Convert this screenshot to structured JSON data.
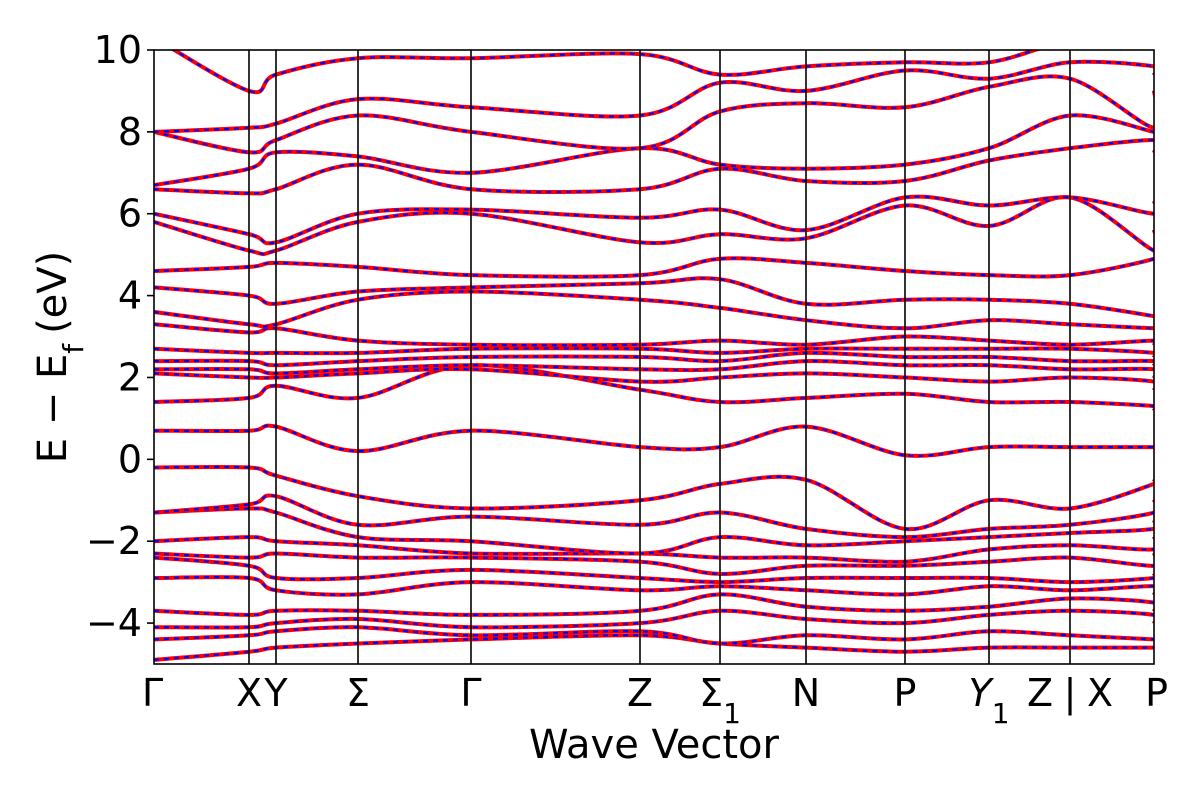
{
  "chart_data": {
    "type": "line",
    "title": "",
    "xlabel": "Wave Vector",
    "ylabel": "E − E",
    "ylabel_sub": "f",
    "ylabel_unit": "(eV)",
    "ylim": [
      -5,
      10
    ],
    "yticks": [
      -4,
      -2,
      0,
      2,
      4,
      6,
      8,
      10
    ],
    "ytick_labels": [
      "−4",
      "−2",
      "0",
      "2",
      "4",
      "6",
      "8",
      "10"
    ],
    "xlim": [
      0,
      1
    ],
    "kpoints": [
      {
        "label": "Γ",
        "sub": "",
        "x": 0.0
      },
      {
        "label": "X",
        "sub": "",
        "x": 0.095
      },
      {
        "label": "Y",
        "sub": "",
        "x": 0.122
      },
      {
        "label": "Σ",
        "sub": "",
        "x": 0.204
      },
      {
        "label": "Γ",
        "sub": "",
        "x": 0.317
      },
      {
        "label": "Z",
        "sub": "",
        "x": 0.486
      },
      {
        "label": "Σ",
        "sub": "1",
        "x": 0.566
      },
      {
        "label": "N",
        "sub": "",
        "x": 0.652
      },
      {
        "label": "P",
        "sub": "",
        "x": 0.751
      },
      {
        "label": "Y",
        "sub": "1",
        "x": 0.835,
        "italic": true
      },
      {
        "label": "Z",
        "sub": "",
        "x": 0.916
      },
      {
        "label": "|",
        "sub": "",
        "x": 0.916
      },
      {
        "label": "X",
        "sub": "",
        "x": 0.916
      },
      {
        "label": "P",
        "sub": "",
        "x": 1.0
      }
    ],
    "grid": false,
    "series": [
      {
        "color": "#ff0000",
        "style": "solid",
        "values_ref": "bands"
      },
      {
        "color": "#0000ff",
        "style": "dashed",
        "values_ref": "bands"
      }
    ],
    "bands": [
      [
        -4.9,
        -4.7,
        -4.6,
        -4.5,
        -4.4,
        -4.3,
        -4.5,
        -4.6,
        -4.7,
        -4.6,
        -4.6,
        -4.6,
        -4.6
      ],
      [
        -4.4,
        -4.3,
        -4.2,
        -4.1,
        -4.3,
        -4.2,
        -4.5,
        -4.3,
        -4.4,
        -4.2,
        -4.3,
        -4.4,
        -4.4
      ],
      [
        -4.1,
        -4.1,
        -4.0,
        -3.9,
        -4.1,
        -4.0,
        -3.7,
        -3.9,
        -4.0,
        -3.8,
        -3.7,
        -3.8,
        -4.0
      ],
      [
        -3.7,
        -3.8,
        -3.7,
        -3.7,
        -3.8,
        -3.7,
        -3.3,
        -3.6,
        -3.7,
        -3.6,
        -3.4,
        -3.5,
        -3.7
      ],
      [
        -2.9,
        -2.9,
        -3.2,
        -3.3,
        -3.0,
        -3.2,
        -3.1,
        -3.2,
        -3.3,
        -3.1,
        -3.2,
        -3.1,
        -3.3
      ],
      [
        -2.4,
        -2.6,
        -2.9,
        -2.9,
        -2.7,
        -2.9,
        -3.0,
        -2.9,
        -2.9,
        -2.9,
        -3.0,
        -2.9,
        -2.8
      ],
      [
        -2.3,
        -2.4,
        -2.3,
        -2.4,
        -2.4,
        -2.5,
        -2.8,
        -2.6,
        -2.6,
        -2.5,
        -2.4,
        -2.6,
        -2.3
      ],
      [
        -2.0,
        -1.9,
        -2.0,
        -2.1,
        -2.3,
        -2.3,
        -2.4,
        -2.4,
        -2.5,
        -2.2,
        -2.1,
        -2.2,
        -1.9
      ],
      [
        -1.3,
        -1.2,
        -1.3,
        -1.9,
        -2.0,
        -2.3,
        -1.9,
        -2.1,
        -2.0,
        -1.9,
        -1.8,
        -1.7,
        -1.5
      ],
      [
        -1.3,
        -1.1,
        -0.9,
        -1.6,
        -1.4,
        -1.6,
        -1.3,
        -1.7,
        -1.9,
        -1.7,
        -1.6,
        -1.3,
        -1.0
      ],
      [
        -0.2,
        -0.2,
        -0.4,
        -0.9,
        -1.2,
        -1.0,
        -0.6,
        -0.5,
        -1.7,
        -1.0,
        -1.2,
        -0.6,
        -0.5
      ],
      [
        0.7,
        0.7,
        0.8,
        0.2,
        0.7,
        0.3,
        0.3,
        0.8,
        0.1,
        0.3,
        0.3,
        0.3,
        0.3
      ],
      [
        1.4,
        1.5,
        1.8,
        1.5,
        2.3,
        1.7,
        1.4,
        1.5,
        1.6,
        1.4,
        1.4,
        1.3,
        1.2
      ],
      [
        2.1,
        2.0,
        2.0,
        2.1,
        2.2,
        1.9,
        2.0,
        2.1,
        2.0,
        1.9,
        2.0,
        1.9,
        1.7
      ],
      [
        2.2,
        2.2,
        2.1,
        2.2,
        2.3,
        2.2,
        2.2,
        2.4,
        2.3,
        2.3,
        2.2,
        2.2,
        2.0
      ],
      [
        2.4,
        2.4,
        2.3,
        2.4,
        2.5,
        2.5,
        2.4,
        2.6,
        2.5,
        2.5,
        2.4,
        2.4,
        2.3
      ],
      [
        2.7,
        2.6,
        2.6,
        2.6,
        2.7,
        2.7,
        2.6,
        2.7,
        2.7,
        2.7,
        2.7,
        2.6,
        2.5
      ],
      [
        3.3,
        3.1,
        3.2,
        2.9,
        2.8,
        2.8,
        2.9,
        2.8,
        3.0,
        2.9,
        2.8,
        2.9,
        2.8
      ],
      [
        3.6,
        3.3,
        3.3,
        3.9,
        4.1,
        3.9,
        3.7,
        3.4,
        3.2,
        3.4,
        3.3,
        3.2,
        3.2
      ],
      [
        4.2,
        4.0,
        3.8,
        4.1,
        4.2,
        4.3,
        4.4,
        3.8,
        3.9,
        3.9,
        3.8,
        3.5,
        3.5
      ],
      [
        4.6,
        4.7,
        4.8,
        4.7,
        4.5,
        4.5,
        4.9,
        4.8,
        4.6,
        4.5,
        4.5,
        4.9,
        5.1
      ],
      [
        5.8,
        5.1,
        5.1,
        5.8,
        6.0,
        5.3,
        5.5,
        5.4,
        6.2,
        5.7,
        6.4,
        5.1,
        5.6
      ],
      [
        6.0,
        5.5,
        5.3,
        6.0,
        6.1,
        5.9,
        6.1,
        5.6,
        6.4,
        6.2,
        6.4,
        6.0,
        6.3
      ],
      [
        6.6,
        6.5,
        6.6,
        7.2,
        6.6,
        6.6,
        7.1,
        6.8,
        6.8,
        7.3,
        7.6,
        7.8,
        7.5
      ],
      [
        6.7,
        7.1,
        7.5,
        7.4,
        7.0,
        7.6,
        7.2,
        7.1,
        7.2,
        7.6,
        8.4,
        8.0,
        8.0
      ],
      [
        8.0,
        7.5,
        7.8,
        8.4,
        8.0,
        7.6,
        8.5,
        8.7,
        8.6,
        9.1,
        9.3,
        8.1,
        9.0
      ],
      [
        8.0,
        8.1,
        8.2,
        8.8,
        8.6,
        8.4,
        9.2,
        9.0,
        9.5,
        9.3,
        9.7,
        9.6,
        9.4
      ],
      [
        10.3,
        9.0,
        9.4,
        9.8,
        9.8,
        9.9,
        9.4,
        9.6,
        9.7,
        9.7,
        10.2,
        10.1,
        10.2
      ]
    ]
  }
}
